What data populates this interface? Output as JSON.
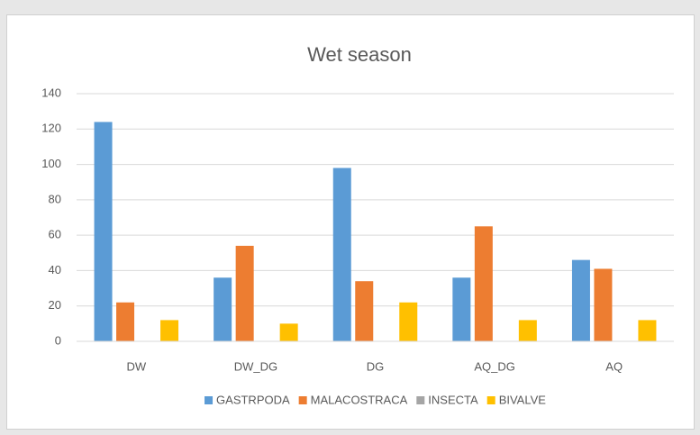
{
  "chart_data": {
    "type": "bar",
    "title": "Wet season",
    "categories": [
      "DW",
      "DW_DG",
      "DG",
      "AQ_DG",
      "AQ"
    ],
    "series": [
      {
        "name": "GASTRPODA",
        "color": "#5b9bd5",
        "values": [
          124,
          36,
          98,
          36,
          46
        ]
      },
      {
        "name": "MALACOSTRACA",
        "color": "#ed7d31",
        "values": [
          22,
          54,
          34,
          65,
          41
        ]
      },
      {
        "name": "INSECTA",
        "color": "#a5a5a5",
        "values": [
          0,
          0,
          0,
          0,
          0
        ]
      },
      {
        "name": "BIVALVE",
        "color": "#ffc000",
        "values": [
          12,
          10,
          22,
          12,
          12
        ]
      }
    ],
    "ylim": [
      0,
      140
    ],
    "yticks": [
      0,
      20,
      40,
      60,
      80,
      100,
      120,
      140
    ],
    "grid": true,
    "legend": "bottom"
  }
}
